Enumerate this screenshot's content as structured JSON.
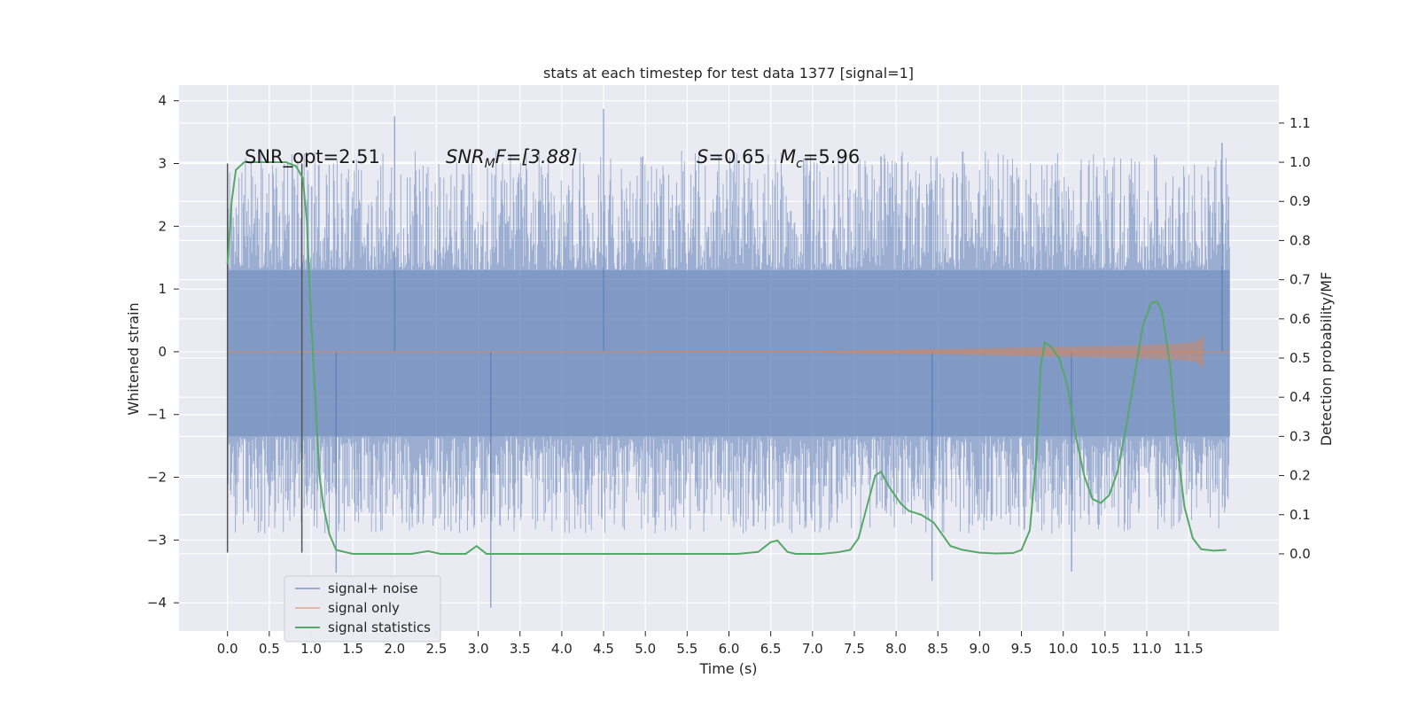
{
  "chart_data": {
    "type": "line",
    "title": "stats at each timestep for test data 1377 [signal=1]",
    "xlabel": "Time (s)",
    "ylabel": "Whitened strain",
    "ylabel_right": "Detection probability/MF",
    "xlim": [
      -0.58,
      12.58
    ],
    "ylim": [
      -4.45,
      4.25
    ],
    "ylim_right": [
      -0.197,
      1.197
    ],
    "x_ticks": [
      0.0,
      0.5,
      1.0,
      1.5,
      2.0,
      2.5,
      3.0,
      3.5,
      4.0,
      4.5,
      5.0,
      5.5,
      6.0,
      6.5,
      7.0,
      7.5,
      8.0,
      8.5,
      9.0,
      9.5,
      10.0,
      10.5,
      11.0,
      11.5
    ],
    "x_tick_labels": [
      "0.0",
      "0.5",
      "1.0",
      "1.5",
      "2.0",
      "2.5",
      "3.0",
      "3.5",
      "4.0",
      "4.5",
      "5.0",
      "5.5",
      "6.0",
      "6.5",
      "7.0",
      "7.5",
      "8.0",
      "8.5",
      "9.0",
      "9.5",
      "10.0",
      "10.5",
      "11.0",
      "11.5"
    ],
    "y_ticks": [
      -4,
      -3,
      -2,
      -1,
      0,
      1,
      2,
      3,
      4
    ],
    "y_tick_labels": [
      "−4",
      "−3",
      "−2",
      "−1",
      "0",
      "1",
      "2",
      "3",
      "4"
    ],
    "y_right_ticks": [
      0.0,
      0.1,
      0.2,
      0.3,
      0.4,
      0.5,
      0.6,
      0.7,
      0.8,
      0.9,
      1.0,
      1.1
    ],
    "y_right_tick_labels": [
      "0.0",
      "0.1",
      "0.2",
      "0.3",
      "0.4",
      "0.5",
      "0.6",
      "0.7",
      "0.8",
      "0.9",
      "1.0",
      "1.1"
    ],
    "grid": true,
    "legend_position": "lower-left",
    "annotations": {
      "snr_opt": "SNR_opt=2.51",
      "snr_mf_symbol": "SNR",
      "snr_mf_sub": "M",
      "snr_mf_rest": "F=[3.88]",
      "s_symbol": "S",
      "s_value": "=0.65",
      "mc_symbol": "M",
      "mc_sub": "c",
      "mc_value": "=5.96"
    },
    "markers": [
      {
        "x": 0.0,
        "y_range": [
          -3.2,
          3.0
        ]
      },
      {
        "x": 0.89,
        "y_range": [
          -3.2,
          3.0
        ]
      }
    ],
    "series": [
      {
        "name": "signal+ noise",
        "color": "#4c72b0",
        "kind": "noise",
        "x_range": [
          0.0,
          11.99
        ],
        "core_band": [
          -1.35,
          1.3
        ],
        "typical_extremes": [
          -2.9,
          3.2
        ],
        "peaks": [
          {
            "x": 2.0,
            "y": 3.75
          },
          {
            "x": 4.5,
            "y": 3.87
          },
          {
            "x": 3.15,
            "y": -4.08
          },
          {
            "x": 1.3,
            "y": -3.52
          },
          {
            "x": 8.43,
            "y": -3.65
          },
          {
            "x": 10.1,
            "y": -3.5
          },
          {
            "x": 11.9,
            "y": 3.33
          }
        ]
      },
      {
        "name": "signal only",
        "color": "#dd8452",
        "kind": "chirp",
        "x_range": [
          0.0,
          11.99
        ],
        "chirp_end": 11.68,
        "amplitude_end": 0.28
      },
      {
        "name": "signal statistics",
        "color": "#55a868",
        "axis": "right",
        "points": [
          [
            0.0,
            0.74
          ],
          [
            0.05,
            0.9
          ],
          [
            0.1,
            0.98
          ],
          [
            0.2,
            1.0
          ],
          [
            0.7,
            1.0
          ],
          [
            0.82,
            0.99
          ],
          [
            0.9,
            0.96
          ],
          [
            0.95,
            0.85
          ],
          [
            1.0,
            0.6
          ],
          [
            1.05,
            0.4
          ],
          [
            1.1,
            0.2
          ],
          [
            1.15,
            0.12
          ],
          [
            1.22,
            0.05
          ],
          [
            1.3,
            0.01
          ],
          [
            1.5,
            0.0
          ],
          [
            2.2,
            0.0
          ],
          [
            2.4,
            0.007
          ],
          [
            2.55,
            0.0
          ],
          [
            2.85,
            0.0
          ],
          [
            2.98,
            0.02
          ],
          [
            3.1,
            0.0
          ],
          [
            6.1,
            0.0
          ],
          [
            6.35,
            0.005
          ],
          [
            6.5,
            0.03
          ],
          [
            6.58,
            0.034
          ],
          [
            6.7,
            0.005
          ],
          [
            6.8,
            0.0
          ],
          [
            7.1,
            0.0
          ],
          [
            7.3,
            0.004
          ],
          [
            7.45,
            0.01
          ],
          [
            7.55,
            0.04
          ],
          [
            7.65,
            0.12
          ],
          [
            7.75,
            0.2
          ],
          [
            7.82,
            0.21
          ],
          [
            7.92,
            0.17
          ],
          [
            8.05,
            0.13
          ],
          [
            8.15,
            0.11
          ],
          [
            8.3,
            0.1
          ],
          [
            8.45,
            0.08
          ],
          [
            8.55,
            0.05
          ],
          [
            8.65,
            0.02
          ],
          [
            8.8,
            0.01
          ],
          [
            9.0,
            0.003
          ],
          [
            9.2,
            0.001
          ],
          [
            9.4,
            0.002
          ],
          [
            9.5,
            0.01
          ],
          [
            9.6,
            0.06
          ],
          [
            9.68,
            0.25
          ],
          [
            9.73,
            0.48
          ],
          [
            9.78,
            0.54
          ],
          [
            9.85,
            0.53
          ],
          [
            9.95,
            0.5
          ],
          [
            10.05,
            0.43
          ],
          [
            10.15,
            0.3
          ],
          [
            10.25,
            0.2
          ],
          [
            10.35,
            0.14
          ],
          [
            10.45,
            0.13
          ],
          [
            10.55,
            0.15
          ],
          [
            10.65,
            0.21
          ],
          [
            10.75,
            0.32
          ],
          [
            10.85,
            0.45
          ],
          [
            10.95,
            0.58
          ],
          [
            11.05,
            0.64
          ],
          [
            11.12,
            0.645
          ],
          [
            11.18,
            0.62
          ],
          [
            11.28,
            0.48
          ],
          [
            11.35,
            0.3
          ],
          [
            11.45,
            0.12
          ],
          [
            11.55,
            0.04
          ],
          [
            11.65,
            0.012
          ],
          [
            11.8,
            0.008
          ],
          [
            11.95,
            0.01
          ]
        ]
      }
    ]
  }
}
